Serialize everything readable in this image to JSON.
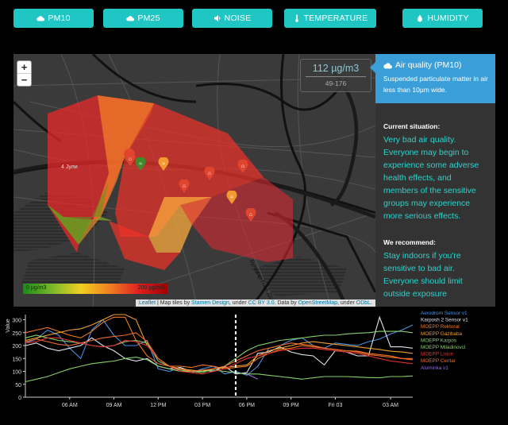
{
  "buttons": [
    {
      "label": "PM10",
      "icon": "cloud-icon"
    },
    {
      "label": "PM25",
      "icon": "cloud-icon"
    },
    {
      "label": "NOISE",
      "icon": "volume-icon"
    },
    {
      "label": "TEMPERATURE",
      "icon": "thermometer-icon"
    },
    {
      "label": "HUMIDITY",
      "icon": "droplet-icon"
    }
  ],
  "colors": {
    "accent": "#1fc6c3",
    "panel_header": "#3a9fd8",
    "advice_text": "#2fd2cc"
  },
  "map": {
    "zoom_in": "+",
    "zoom_out": "−",
    "value": "112 µg/m3",
    "range": "49-176",
    "legend_min": "0 µg/m3",
    "legend_max": "200 µg/m3",
    "road_label_1": "4 Јули",
    "road_label_2": "Булевар Гоце Делчев",
    "attribution": {
      "leaflet": "Leaflet",
      "t1": " | Map tiles by ",
      "stamen": "Stamen Design",
      "t2": ", under ",
      "cc": "CC BY 3.0",
      "t3": ". Data by ",
      "osm": "OpenStreetMap",
      "t4": ", under ",
      "odbl": "ODbL",
      "t5": "."
    }
  },
  "info": {
    "title": "Air quality (PM10)",
    "description": "Suspended particulate matter in air less than 10µm wide.",
    "current_label": "Current situation:",
    "current_text": "Very bad air quality. Everyone may begin to experience some adverse health effects, and members of the sensitive groups may experience more serious effects.",
    "recommend_label": "We recommend:",
    "recommend_text": "Stay indoors if you're sensitive to bad air. Everyone should limit outside exposure"
  },
  "chart_data": {
    "type": "line",
    "ylabel": "Value",
    "yticks": [
      0,
      50,
      100,
      150,
      200,
      250,
      300
    ],
    "ylim": [
      0,
      320
    ],
    "xticks": [
      "06 AM",
      "09 AM",
      "12 PM",
      "03 PM",
      "06 PM",
      "09 PM",
      "Fri 03",
      "03 AM"
    ],
    "series": [
      {
        "name": "Aerodrom Sensor v1",
        "color": "#4a8fe0",
        "values": [
          210,
          225,
          260,
          240,
          190,
          150,
          260,
          300,
          240,
          200,
          200,
          220,
          110,
          100,
          115,
          95,
          110,
          120,
          90,
          100,
          85,
          120,
          190,
          200,
          220,
          230,
          200,
          190,
          210,
          205,
          200,
          215,
          225,
          245,
          260,
          280
        ]
      },
      {
        "name": "Karposh 2 Sensor v1",
        "color": "#dfe6f0",
        "values": [
          200,
          210,
          190,
          180,
          190,
          200,
          230,
          200,
          180,
          150,
          140,
          150,
          120,
          110,
          115,
          100,
          105,
          100,
          120,
          90,
          95,
          170,
          175,
          195,
          175,
          165,
          160,
          125,
          180,
          175,
          160,
          160,
          310,
          195,
          195,
          190
        ]
      },
      {
        "name": "MOEPP Rektorat",
        "color": "#f07a20",
        "values": [
          250,
          260,
          270,
          255,
          240,
          230,
          255,
          290,
          310,
          310,
          220,
          160,
          130,
          120,
          120,
          115,
          125,
          120,
          110,
          115,
          120,
          150,
          170,
          185,
          190,
          200,
          195,
          190,
          185,
          180,
          178,
          170,
          165,
          160,
          150,
          150
        ]
      },
      {
        "name": "MOEPP Gazibaba",
        "color": "#f0a030",
        "values": [
          220,
          230,
          240,
          250,
          260,
          265,
          280,
          300,
          320,
          320,
          300,
          200,
          150,
          120,
          110,
          105,
          100,
          110,
          115,
          120,
          125,
          160,
          180,
          190,
          200,
          210,
          215,
          210,
          205,
          200,
          195,
          190,
          185,
          178,
          175,
          170
        ]
      },
      {
        "name": "MOEPP Karpos",
        "color": "#86d06a",
        "values": [
          230,
          240,
          230,
          220,
          215,
          210,
          200,
          195,
          200,
          215,
          220,
          210,
          140,
          120,
          105,
          100,
          95,
          110,
          120,
          150,
          180,
          200,
          210,
          220,
          225,
          230,
          235,
          240,
          240,
          245,
          248,
          250,
          255,
          255,
          255,
          250
        ]
      },
      {
        "name": "MOEPP Miladinovci",
        "color": "#86d06a",
        "values": [
          60,
          70,
          80,
          95,
          110,
          120,
          130,
          135,
          140,
          150,
          155,
          145,
          120,
          110,
          100,
          100,
          100,
          105,
          100,
          95,
          90,
          90,
          85,
          80,
          75,
          70,
          75,
          80,
          80,
          80,
          78,
          76,
          75,
          80,
          80,
          82
        ]
      },
      {
        "name": "MOEPP Lisice",
        "color": "#e03030",
        "values": [
          210,
          215,
          230,
          230,
          220,
          210,
          200,
          195,
          200,
          220,
          215,
          200,
          150,
          120,
          100,
          95,
          90,
          100,
          110,
          130,
          150,
          160,
          170,
          180,
          185,
          190,
          190,
          185,
          180,
          175,
          170,
          160,
          150,
          140,
          135,
          130
        ]
      },
      {
        "name": "MOEPP Centar",
        "color": "#f06a30",
        "values": [
          215,
          225,
          215,
          205,
          200,
          210,
          220,
          230,
          235,
          240,
          250,
          215,
          150,
          120,
          110,
          100,
          105,
          110,
          120,
          140,
          160,
          180,
          190,
          200,
          210,
          205,
          200,
          190,
          185,
          180,
          175,
          165,
          160,
          155,
          150,
          145
        ]
      },
      {
        "name": "Aluminka v1",
        "color": "#9a6ae0",
        "values": [
          null,
          null,
          null,
          null,
          null,
          null,
          null,
          null,
          null,
          null,
          null,
          null,
          null,
          null,
          null,
          null,
          null,
          null,
          null,
          null,
          90,
          70,
          null,
          null,
          null,
          null,
          null,
          null,
          null,
          null,
          null,
          null,
          null,
          null,
          null,
          null
        ]
      }
    ],
    "current_marker_index": 19
  }
}
